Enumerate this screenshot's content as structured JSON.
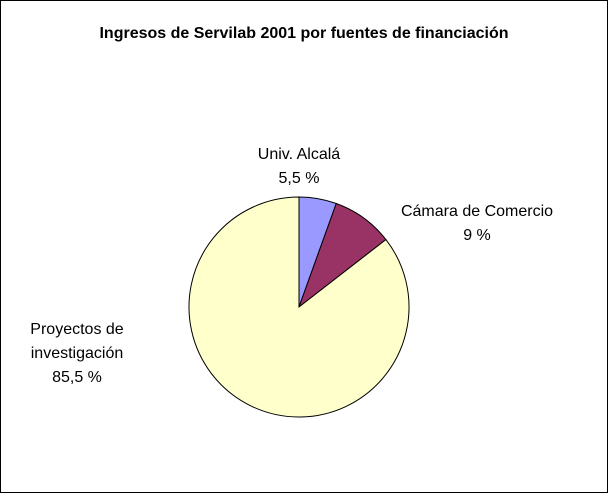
{
  "chart_data": {
    "type": "pie",
    "title": "Ingresos de Servilab 2001 por fuentes de financiación",
    "categories": [
      "Univ. Alcalá",
      "Cámara de Comercio",
      "Proyectos de investigación"
    ],
    "values": [
      5.5,
      9,
      85.5
    ],
    "value_labels": [
      "5,5 %",
      "9 %",
      "85,5 %"
    ],
    "colors": [
      "#9999ff",
      "#993366",
      "#ffffcc"
    ]
  }
}
